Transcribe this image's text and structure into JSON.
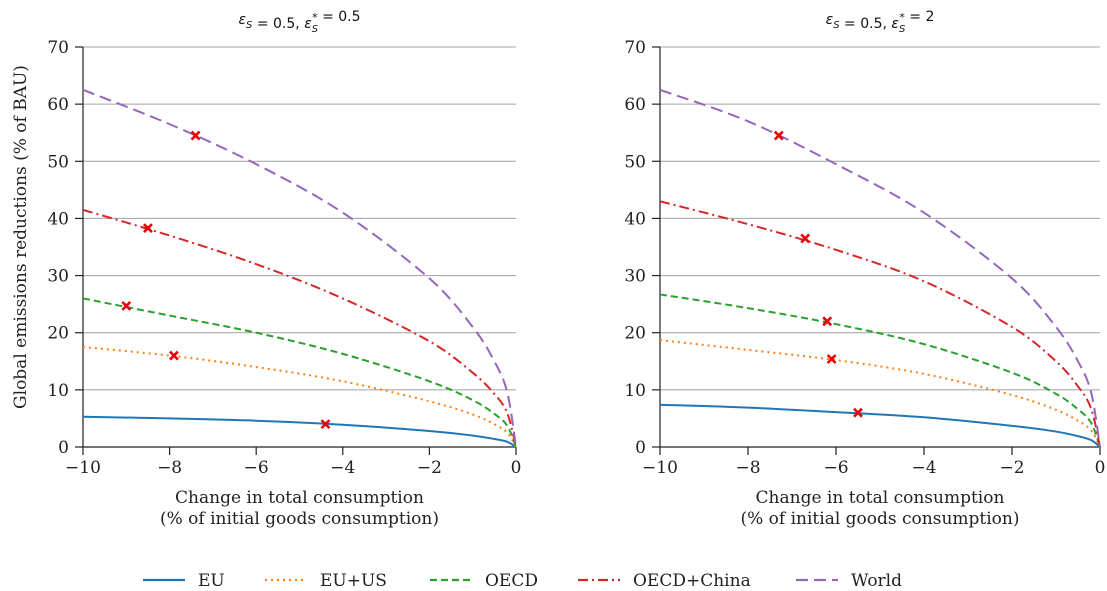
{
  "series_styles": [
    {
      "name": "EU",
      "color": "#1f77b4",
      "dash": "solid"
    },
    {
      "name": "EU+US",
      "color": "#ff7f0e",
      "dash": "dotted"
    },
    {
      "name": "OECD",
      "color": "#2ca02c",
      "dash": "dashed"
    },
    {
      "name": "OECD+China",
      "color": "#d62728",
      "dash": "dashdot"
    },
    {
      "name": "World",
      "color": "#9467bd",
      "dash": "longdash"
    }
  ],
  "marker": {
    "shape": "x",
    "color": "#e8000b"
  },
  "chart_data": [
    {
      "type": "line",
      "title": "ε_S = 0.5, ε_S* = 0.5",
      "xlabel": "Change in total consumption\n(% of initial goods consumption)",
      "ylabel": "Global emissions reductions (% of BAU)",
      "xlim": [
        -10,
        0
      ],
      "ylim": [
        0,
        70
      ],
      "xticks": [
        -10,
        -8,
        -6,
        -4,
        -2,
        0
      ],
      "xtick_labels": [
        "−10",
        "−8",
        "−6",
        "−4",
        "−2",
        "0"
      ],
      "yticks": [
        0,
        10,
        20,
        30,
        40,
        50,
        60,
        70
      ],
      "ytick_labels": [
        "0",
        "10",
        "20",
        "30",
        "40",
        "50",
        "60",
        "70"
      ],
      "grid": "y",
      "series": [
        {
          "name": "EU",
          "x": [
            -10,
            -8,
            -6,
            -4,
            -2,
            -1,
            -0.5,
            -0.2,
            0
          ],
          "y": [
            5.3,
            5.0,
            4.6,
            3.9,
            2.8,
            2.0,
            1.4,
            0.9,
            0
          ],
          "marker": {
            "x": -4.4,
            "y": 4.0
          }
        },
        {
          "name": "EU+US",
          "x": [
            -10,
            -8,
            -6,
            -4,
            -2,
            -1,
            -0.5,
            -0.2,
            0
          ],
          "y": [
            17.5,
            16.0,
            14.0,
            11.5,
            8.0,
            5.7,
            4.0,
            2.5,
            0
          ],
          "marker": {
            "x": -7.9,
            "y": 16.0
          }
        },
        {
          "name": "OECD",
          "x": [
            -10,
            -8,
            -6,
            -4,
            -2,
            -1,
            -0.5,
            -0.2,
            0
          ],
          "y": [
            26.0,
            23.0,
            20.0,
            16.3,
            11.5,
            8.2,
            5.8,
            3.7,
            0
          ],
          "marker": {
            "x": -9.0,
            "y": 24.7
          }
        },
        {
          "name": "OECD+China",
          "x": [
            -10,
            -8,
            -6,
            -4,
            -2,
            -1,
            -0.5,
            -0.2,
            0
          ],
          "y": [
            41.5,
            37.0,
            32.0,
            26.0,
            18.5,
            13.0,
            9.3,
            5.9,
            0
          ],
          "marker": {
            "x": -8.5,
            "y": 38.3
          }
        },
        {
          "name": "World",
          "x": [
            -10,
            -8,
            -6,
            -4,
            -2,
            -1,
            -0.5,
            -0.2,
            0
          ],
          "y": [
            62.5,
            56.5,
            49.5,
            41.0,
            29.5,
            21.0,
            15.0,
            9.5,
            0
          ],
          "marker": {
            "x": -7.4,
            "y": 54.5
          }
        }
      ]
    },
    {
      "type": "line",
      "title": "ε_S = 0.5, ε_S* = 2",
      "xlabel": "Change in total consumption\n(% of initial goods consumption)",
      "ylabel": "",
      "xlim": [
        -10,
        0
      ],
      "ylim": [
        0,
        70
      ],
      "xticks": [
        -10,
        -8,
        -6,
        -4,
        -2,
        0
      ],
      "xtick_labels": [
        "−10",
        "−8",
        "−6",
        "−4",
        "−2",
        "0"
      ],
      "yticks": [
        0,
        10,
        20,
        30,
        40,
        50,
        60,
        70
      ],
      "ytick_labels": [
        "0",
        "10",
        "20",
        "30",
        "40",
        "50",
        "60",
        "70"
      ],
      "grid": "y",
      "series": [
        {
          "name": "EU",
          "x": [
            -10,
            -8,
            -6,
            -4,
            -2,
            -1,
            -0.5,
            -0.2,
            0
          ],
          "y": [
            7.4,
            6.9,
            6.1,
            5.2,
            3.7,
            2.7,
            1.9,
            1.2,
            0
          ],
          "marker": {
            "x": -5.5,
            "y": 6.0
          }
        },
        {
          "name": "EU+US",
          "x": [
            -10,
            -8,
            -6,
            -4,
            -2,
            -1,
            -0.5,
            -0.2,
            0
          ],
          "y": [
            18.7,
            17.0,
            15.2,
            12.8,
            9.1,
            6.5,
            4.6,
            2.9,
            0
          ],
          "marker": {
            "x": -6.1,
            "y": 15.4
          }
        },
        {
          "name": "OECD",
          "x": [
            -10,
            -8,
            -6,
            -4,
            -2,
            -1,
            -0.5,
            -0.2,
            0
          ],
          "y": [
            26.7,
            24.3,
            21.5,
            18.0,
            13.0,
            9.3,
            6.6,
            4.2,
            0
          ],
          "marker": {
            "x": -6.2,
            "y": 22.0
          }
        },
        {
          "name": "OECD+China",
          "x": [
            -10,
            -8,
            -6,
            -4,
            -2,
            -1,
            -0.5,
            -0.2,
            0
          ],
          "y": [
            43.0,
            39.0,
            34.5,
            29.0,
            21.0,
            15.0,
            10.6,
            6.7,
            0
          ],
          "marker": {
            "x": -6.7,
            "y": 36.5
          }
        },
        {
          "name": "World",
          "x": [
            -10,
            -8,
            -6,
            -4,
            -2,
            -1,
            -0.5,
            -0.2,
            0
          ],
          "y": [
            62.5,
            57.0,
            49.5,
            41.0,
            29.5,
            21.0,
            15.0,
            9.5,
            0
          ],
          "marker": {
            "x": -7.3,
            "y": 54.5
          }
        }
      ]
    }
  ]
}
